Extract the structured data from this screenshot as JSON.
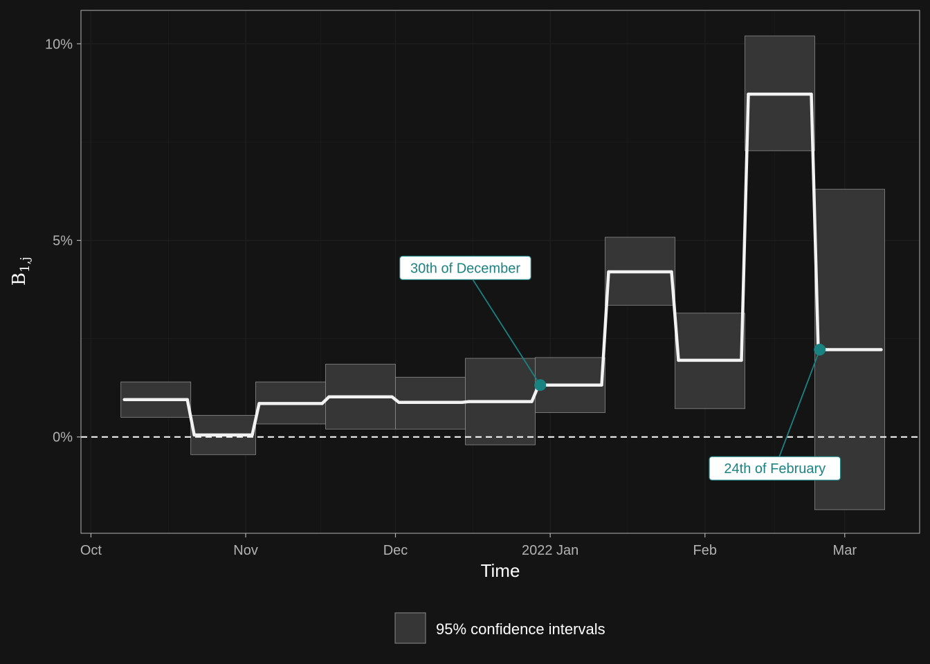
{
  "chart_data": {
    "type": "line",
    "xlabel": "Time",
    "ylabel_main": "B",
    "ylabel_sub": "1,j",
    "x_ticks": [
      {
        "date": "2021-10-01",
        "label": "Oct"
      },
      {
        "date": "2021-11-01",
        "label": "Nov"
      },
      {
        "date": "2021-12-01",
        "label": "Dec"
      },
      {
        "date": "2022-01-01",
        "label": "2022 Jan"
      },
      {
        "date": "2022-02-01",
        "label": "Feb"
      },
      {
        "date": "2022-03-01",
        "label": "Mar"
      }
    ],
    "y_ticks": [
      {
        "value": 0,
        "label": "0%"
      },
      {
        "value": 5,
        "label": "5%"
      },
      {
        "value": 10,
        "label": "10%"
      }
    ],
    "xlim": [
      "2021-09-29",
      "2022-03-16"
    ],
    "ylim": [
      -2.45,
      10.85
    ],
    "y_unit": "%",
    "grid": true,
    "reference_line": {
      "y": 0,
      "style": "dashed"
    },
    "series": [
      {
        "values": [
          {
            "start": "2021-10-07",
            "end": "2021-10-21",
            "estimate": 0.95,
            "lower": 0.5,
            "upper": 1.4
          },
          {
            "start": "2021-10-21",
            "end": "2021-11-03",
            "estimate": 0.05,
            "lower": -0.45,
            "upper": 0.55
          },
          {
            "start": "2021-11-03",
            "end": "2021-11-17",
            "estimate": 0.85,
            "lower": 0.33,
            "upper": 1.4
          },
          {
            "start": "2021-11-17",
            "end": "2021-12-01",
            "estimate": 1.02,
            "lower": 0.2,
            "upper": 1.85
          },
          {
            "start": "2021-12-01",
            "end": "2021-12-15",
            "estimate": 0.88,
            "lower": 0.2,
            "upper": 1.52
          },
          {
            "start": "2021-12-15",
            "end": "2021-12-29",
            "estimate": 0.9,
            "lower": -0.2,
            "upper": 2.0
          },
          {
            "start": "2021-12-29",
            "end": "2022-01-12",
            "estimate": 1.32,
            "lower": 0.62,
            "upper": 2.02
          },
          {
            "start": "2022-01-12",
            "end": "2022-01-26",
            "estimate": 4.2,
            "lower": 3.35,
            "upper": 5.08
          },
          {
            "start": "2022-01-26",
            "end": "2022-02-09",
            "estimate": 1.95,
            "lower": 0.72,
            "upper": 3.15
          },
          {
            "start": "2022-02-09",
            "end": "2022-02-23",
            "estimate": 8.72,
            "lower": 7.28,
            "upper": 10.2
          },
          {
            "start": "2022-02-23",
            "end": "2022-03-09",
            "estimate": 2.22,
            "lower": -1.85,
            "upper": 6.3
          }
        ]
      }
    ],
    "annotations": [
      {
        "label": "30th of December",
        "point": {
          "x": "2021-12-30",
          "y": 1.32
        },
        "label_at": {
          "x": "2021-12-15",
          "y": 4.3
        }
      },
      {
        "label": "24th of February",
        "point": {
          "x": "2022-02-24",
          "y": 2.22
        },
        "label_at": {
          "x": "2022-02-15",
          "y": -0.8
        }
      }
    ],
    "legend": {
      "position": "bottom",
      "label": "95% confidence intervals"
    },
    "colors": {
      "background": "#141414",
      "panel": "#141414",
      "grid": "#1e1e1e",
      "ribbon_fill": "#363636",
      "ribbon_stroke": "#8c8c8c",
      "line": "#f2f2f2",
      "annotation": "#1b8282",
      "zero_line": "#ffffff"
    }
  }
}
